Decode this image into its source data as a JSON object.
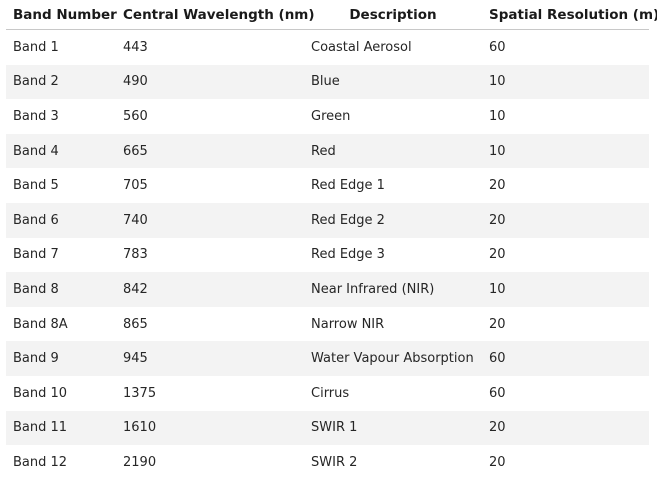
{
  "table": {
    "headers": [
      "Band Number",
      "Central Wavelength (nm)",
      "Description",
      "Spatial Resolution (m)"
    ],
    "rows": [
      {
        "band": "Band 1",
        "wavelength": "443",
        "description": "Coastal Aerosol",
        "resolution": "60"
      },
      {
        "band": "Band 2",
        "wavelength": "490",
        "description": "Blue",
        "resolution": "10"
      },
      {
        "band": "Band 3",
        "wavelength": "560",
        "description": "Green",
        "resolution": "10"
      },
      {
        "band": "Band 4",
        "wavelength": "665",
        "description": "Red",
        "resolution": "10"
      },
      {
        "band": "Band 5",
        "wavelength": "705",
        "description": "Red Edge 1",
        "resolution": "20"
      },
      {
        "band": "Band 6",
        "wavelength": "740",
        "description": "Red Edge 2",
        "resolution": "20"
      },
      {
        "band": "Band 7",
        "wavelength": "783",
        "description": "Red Edge 3",
        "resolution": "20"
      },
      {
        "band": "Band 8",
        "wavelength": "842",
        "description": "Near Infrared (NIR)",
        "resolution": "10"
      },
      {
        "band": "Band 8A",
        "wavelength": "865",
        "description": "Narrow NIR",
        "resolution": "20"
      },
      {
        "band": "Band 9",
        "wavelength": "945",
        "description": "Water Vapour Absorption",
        "resolution": "60"
      },
      {
        "band": "Band 10",
        "wavelength": "1375",
        "description": "Cirrus",
        "resolution": "60"
      },
      {
        "band": "Band 11",
        "wavelength": "1610",
        "description": "SWIR 1",
        "resolution": "20"
      },
      {
        "band": "Band 12",
        "wavelength": "2190",
        "description": "SWIR 2",
        "resolution": "20"
      }
    ]
  }
}
